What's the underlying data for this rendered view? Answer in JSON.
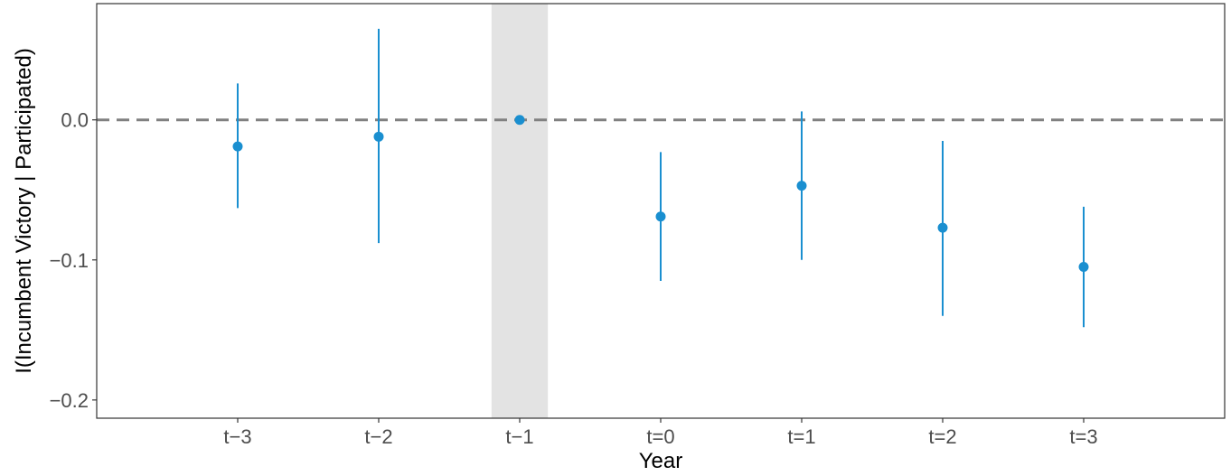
{
  "chart_data": {
    "type": "scatter",
    "subtype": "coefficient-plot-with-error-bars",
    "xlabel": "Year",
    "ylabel": "I(Incumbent Victory | Participated)",
    "categories": [
      "t−3",
      "t−2",
      "t−1",
      "t=0",
      "t=1",
      "t=2",
      "t=3"
    ],
    "estimates": [
      -0.019,
      -0.012,
      0.0,
      -0.069,
      -0.047,
      -0.077,
      -0.105
    ],
    "ci_lower": [
      -0.063,
      -0.088,
      0.0,
      -0.115,
      -0.1,
      -0.14,
      -0.148
    ],
    "ci_upper": [
      0.026,
      0.065,
      0.0,
      -0.023,
      0.006,
      -0.015,
      -0.062
    ],
    "yticks": [
      0.0,
      -0.1,
      -0.2
    ],
    "ytick_labels": [
      "0.0",
      "−0.1",
      "−0.2"
    ],
    "ylim": [
      -0.213,
      0.083
    ],
    "reference_line_y": 0.0,
    "reference_line_style": "dashed",
    "highlighted_category": "t−1",
    "grid": false,
    "legend": "none",
    "colors": {
      "points": "#1a8fd0",
      "reference_line": "#808080",
      "highlight_band": "#e3e3e3",
      "panel_border": "#333333"
    }
  }
}
